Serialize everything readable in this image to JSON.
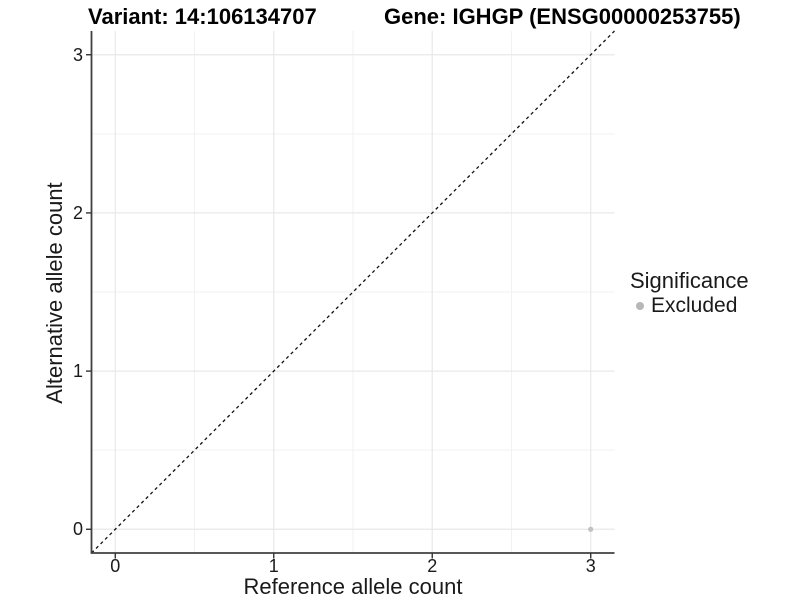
{
  "titles": {
    "variant": "Variant: 14:106134707",
    "gene": "Gene: IGHGP (ENSG00000253755)"
  },
  "chart_data": {
    "type": "scatter",
    "xlabel": "Reference allele count",
    "ylabel": "Alternative allele count",
    "xlim": [
      -0.15,
      3.15
    ],
    "ylim": [
      -0.15,
      3.15
    ],
    "x_ticks": [
      0,
      1,
      2,
      3
    ],
    "y_ticks": [
      0,
      1,
      2,
      3
    ],
    "x_minor_ticks": [
      0.5,
      1.5,
      2.5
    ],
    "y_minor_ticks": [
      0.5,
      1.5,
      2.5
    ],
    "grid": true,
    "points": [
      {
        "x": 3,
        "y": 0,
        "series": "Excluded"
      }
    ],
    "point_radius": 2.6,
    "reference_line": {
      "type": "identity",
      "style": "dashed",
      "from": [
        -0.15,
        -0.15
      ],
      "to": [
        3.15,
        3.15
      ]
    },
    "legend": {
      "title": "Significance",
      "position": "right",
      "items": [
        {
          "label": "Excluded",
          "color": "#b7b7b7",
          "marker": "circle"
        }
      ]
    },
    "colors": {
      "point": "#c2c2c2",
      "grid_major": "#e8e8e8",
      "grid_minor": "#f2f2f2",
      "axis_line": "#404040",
      "tick_mark": "#333333",
      "reference_line": "#111111",
      "background": "#ffffff"
    }
  }
}
